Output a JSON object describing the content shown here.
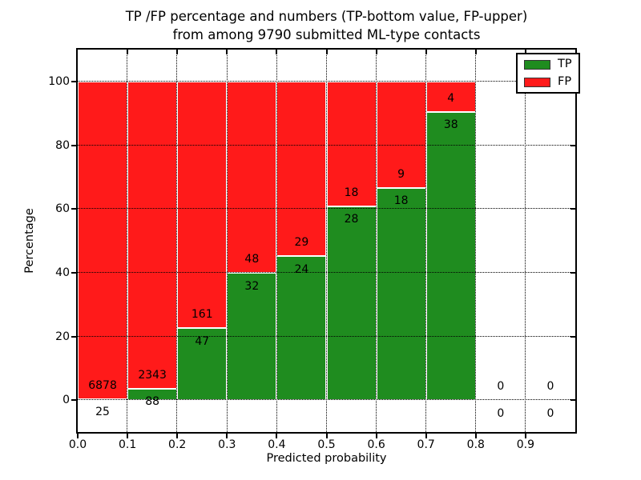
{
  "figure": {
    "title_line1": "TP /FP percentage and numbers (TP-bottom value, FP-upper)",
    "title_line2": "from among 9790 submitted ML-type contacts"
  },
  "axes": {
    "xlabel": "Predicted probability",
    "ylabel": "Percentage",
    "x_tick_labels": [
      "0.0",
      "0.1",
      "0.2",
      "0.3",
      "0.4",
      "0.5",
      "0.6",
      "0.7",
      "0.8",
      "0.9"
    ],
    "y_tick_labels": [
      "0",
      "20",
      "40",
      "60",
      "80",
      "100"
    ],
    "xlim": [
      0.0,
      1.0
    ],
    "ylim": [
      -10,
      110
    ],
    "grid_style": "dotted"
  },
  "legend": {
    "position": "upper-right",
    "items": [
      {
        "label": "TP",
        "color": "#1F8C1F"
      },
      {
        "label": "FP",
        "color": "#FF1A1A"
      }
    ]
  },
  "colors": {
    "tp_green": "#1F8C1F",
    "fp_red": "#FF1A1A",
    "grid": "#000000",
    "bar_edge": "#FFFFFF",
    "background": "#FFFFFF"
  },
  "chart_data": {
    "type": "bar",
    "stacked": true,
    "normalized_to_percent": true,
    "title": "TP /FP percentage and numbers (TP-bottom value, FP-upper) from among 9790 submitted ML-type contacts",
    "xlabel": "Predicted probability",
    "ylabel": "Percentage",
    "total_submitted": 9790,
    "bin_width": 0.1,
    "bin_starts": [
      0.0,
      0.1,
      0.2,
      0.3,
      0.4,
      0.5,
      0.6,
      0.7,
      0.8,
      0.9
    ],
    "series": [
      {
        "name": "TP",
        "color": "#1F8C1F",
        "counts": [
          25,
          88,
          47,
          32,
          24,
          28,
          18,
          38,
          0,
          0
        ]
      },
      {
        "name": "FP",
        "color": "#FF1A1A",
        "counts": [
          6878,
          2343,
          161,
          48,
          29,
          18,
          9,
          4,
          0,
          0
        ]
      }
    ],
    "tp_percent": [
      0.36,
      3.62,
      22.6,
      40.0,
      45.28,
      60.87,
      66.67,
      90.48,
      0,
      0
    ],
    "label_offset_pct": 4.2
  }
}
